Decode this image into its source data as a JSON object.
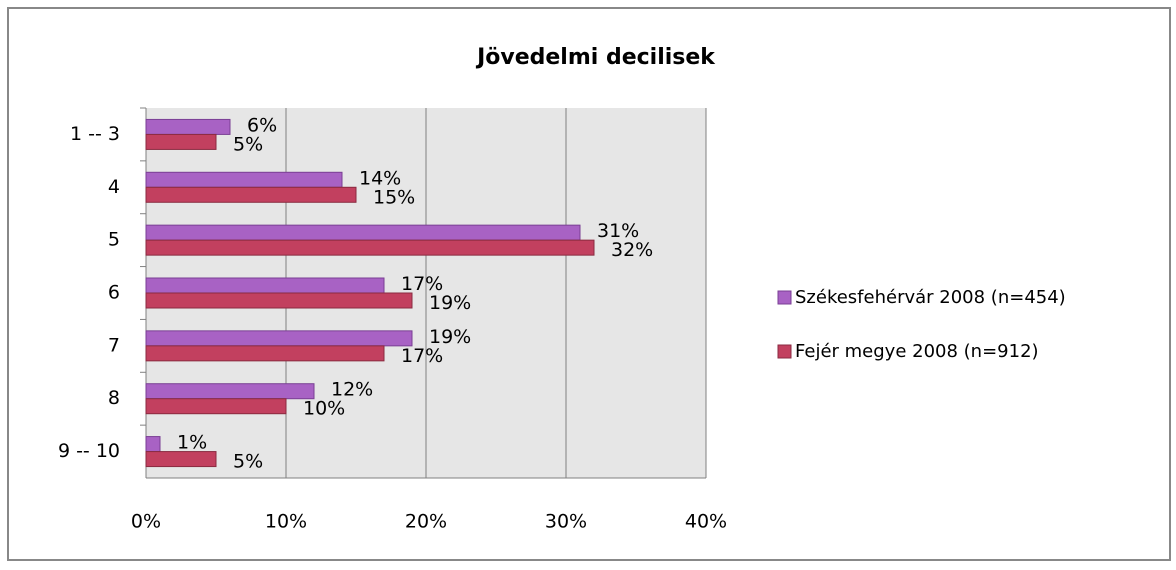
{
  "chart_data": {
    "type": "barh",
    "title": "Jövedelmi decilisek",
    "categories": [
      "1 -- 3",
      "4",
      "5",
      "6",
      "7",
      "8",
      "9 -- 10"
    ],
    "series": [
      {
        "name": "Székesfehérvár 2008 (n=454)",
        "color": "#a862c4",
        "values": [
          6,
          14,
          31,
          17,
          19,
          12,
          1
        ],
        "value_labels": [
          "6%",
          "14%",
          "31%",
          "17%",
          "19%",
          "12%",
          "1%"
        ]
      },
      {
        "name": "Fejér megye 2008 (n=912)",
        "color": "#c2405f",
        "values": [
          5,
          15,
          32,
          19,
          17,
          10,
          5
        ],
        "value_labels": [
          "5%",
          "15%",
          "32%",
          "19%",
          "17%",
          "10%",
          "5%"
        ]
      }
    ],
    "xlim": [
      0,
      40
    ],
    "xticks": [
      {
        "value": 0,
        "label": "0%"
      },
      {
        "value": 10,
        "label": "10%"
      },
      {
        "value": 20,
        "label": "20%"
      },
      {
        "value": 30,
        "label": "30%"
      },
      {
        "value": 40,
        "label": "40%"
      }
    ],
    "grid": true,
    "legend": "right"
  }
}
